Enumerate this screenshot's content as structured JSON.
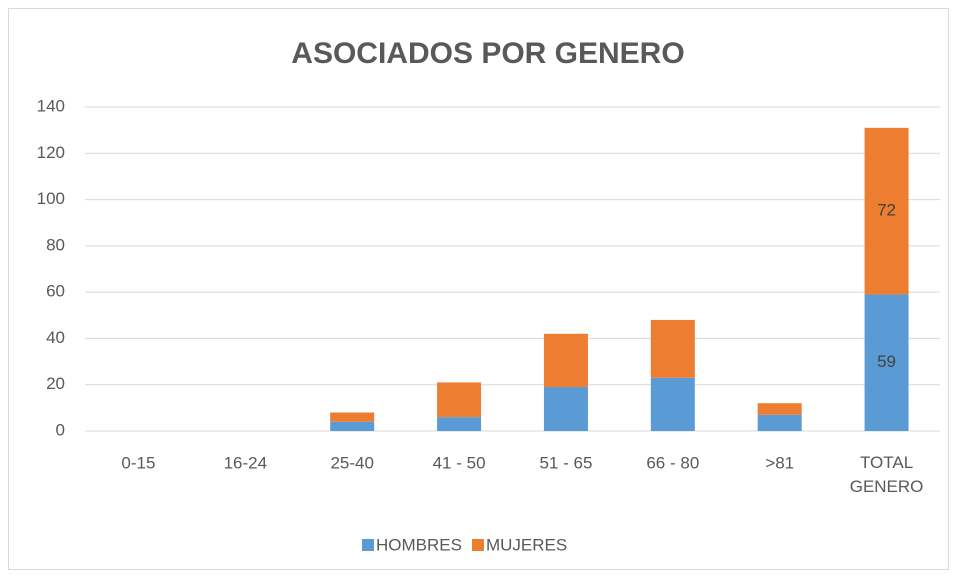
{
  "chart_data": {
    "type": "stacked_bar",
    "title": "ASOCIADOS POR GENERO",
    "categories": [
      "0-15",
      "16-24",
      "25-40",
      "41  - 50",
      "51 - 65",
      "66 - 80",
      ">81",
      "TOTAL GENERO"
    ],
    "series": [
      {
        "name": "HOMBRES",
        "color": "#5b9bd5",
        "values": [
          0,
          0,
          4,
          6,
          19,
          23,
          7,
          59
        ],
        "value_labels": [
          null,
          null,
          null,
          null,
          null,
          null,
          null,
          "59"
        ]
      },
      {
        "name": "MUJERES",
        "color": "#ed7d31",
        "values": [
          0,
          0,
          4,
          15,
          23,
          25,
          5,
          72
        ],
        "value_labels": [
          null,
          null,
          null,
          null,
          null,
          null,
          null,
          "72"
        ]
      }
    ],
    "ylim": [
      0,
      140
    ],
    "yticks": [
      0,
      20,
      40,
      60,
      80,
      100,
      120,
      140
    ],
    "grid": true,
    "legend": "bottom"
  }
}
